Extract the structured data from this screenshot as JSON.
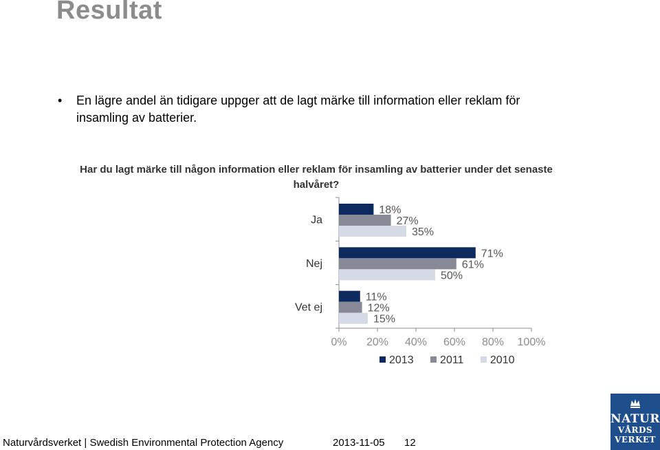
{
  "slide": {
    "title": "Resultat",
    "bullet": "En lägre andel än tidigare uppger att de lagt märke till information eller reklam för insamling av batterier."
  },
  "chart_data": {
    "type": "bar",
    "orientation": "horizontal",
    "title": "Har du lagt märke till någon information eller reklam för insamling av batterier under det senaste halvåret?",
    "categories": [
      "Ja",
      "Nej",
      "Vet ej"
    ],
    "series": [
      {
        "name": "2013",
        "values": [
          18,
          71,
          11
        ],
        "color": "#0d2a5e"
      },
      {
        "name": "2011",
        "values": [
          27,
          61,
          12
        ],
        "color": "#878a96"
      },
      {
        "name": "2010",
        "values": [
          35,
          50,
          15
        ],
        "color": "#d6d9e6"
      }
    ],
    "value_suffix": "%",
    "xlim": [
      0,
      100
    ],
    "xticks": [
      "0%",
      "20%",
      "40%",
      "60%",
      "80%",
      "100%"
    ],
    "grid": false,
    "legend_position": "bottom"
  },
  "footer": {
    "org": "Naturvårdsverket | Swedish Environmental Protection Agency",
    "date": "2013-11-05",
    "page": "12"
  },
  "logo": {
    "line1": "NATUR",
    "line2": "VÅRDS",
    "line3": "VERKET"
  }
}
